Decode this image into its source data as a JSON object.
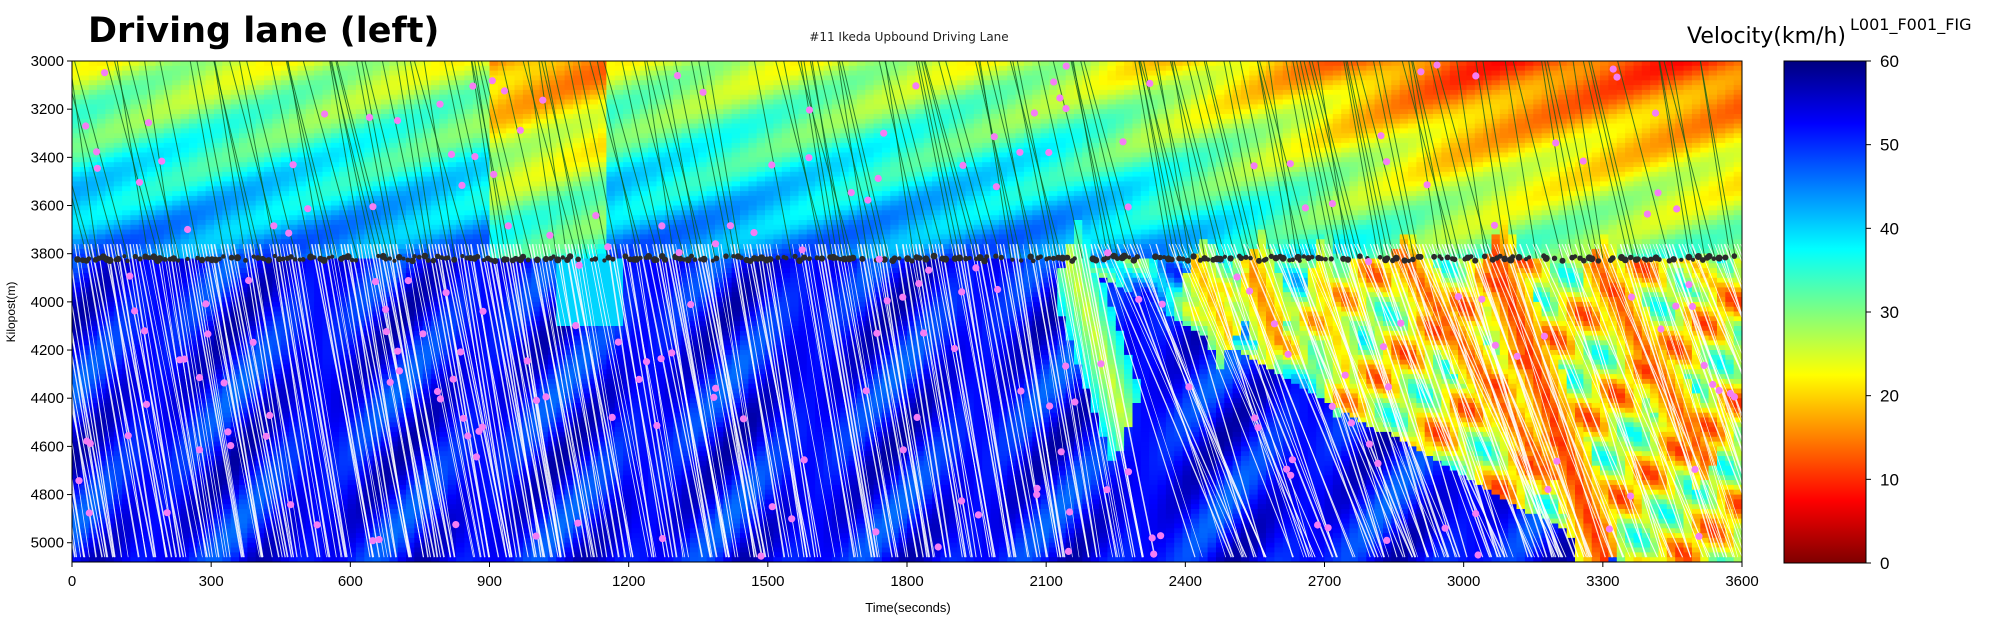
{
  "panel_label": "Driving lane (left)",
  "figure_id": "L001_F001_FIG",
  "colorbar_title": "Velocity(km/h)",
  "chart_data": {
    "type": "heatmap",
    "title": "#11 Ikeda Upbound Driving Lane",
    "xlabel": "Time(seconds)",
    "ylabel": "Kilopost(m)",
    "xlim": [
      0,
      3600
    ],
    "ylim": [
      3000,
      5080
    ],
    "y_inverted": true,
    "xticks": [
      0,
      300,
      600,
      900,
      1200,
      1500,
      1800,
      2100,
      2400,
      2700,
      3000,
      3300,
      3600
    ],
    "yticks": [
      3000,
      3200,
      3400,
      3600,
      3800,
      4000,
      4200,
      4400,
      4600,
      4800,
      5000
    ],
    "colorbar": {
      "label": "Velocity(km/h)",
      "range": [
        0,
        60
      ],
      "ticks": [
        0,
        10,
        20,
        30,
        40,
        50,
        60
      ],
      "colormap": "jet",
      "low_color": "#7f0000",
      "high_color": "#00007f"
    },
    "bottleneck_kilopost": 3820,
    "congestion_onset_time": 2140,
    "congestion_waves": [
      {
        "start_time": 2150,
        "start_kp": 3830,
        "end_time": 2270,
        "end_kp": 4500,
        "min_speed": 25
      },
      {
        "start_time": 2420,
        "start_kp": 3840,
        "end_time": 2500,
        "end_kp": 4150,
        "min_speed": 18
      },
      {
        "start_time": 2540,
        "start_kp": 3850,
        "end_time": 2600,
        "end_kp": 4150,
        "min_speed": 15
      },
      {
        "start_time": 2680,
        "start_kp": 3860,
        "end_time": 2750,
        "end_kp": 4300,
        "min_speed": 20
      },
      {
        "start_time": 2870,
        "start_kp": 3820,
        "end_time": 3180,
        "end_kp": 4700,
        "min_speed": 12
      },
      {
        "start_time": 3070,
        "start_kp": 3830,
        "end_time": 3300,
        "end_kp": 5050,
        "min_speed": 10
      },
      {
        "start_time": 3290,
        "start_kp": 3850,
        "end_time": 3520,
        "end_kp": 4650,
        "min_speed": 12
      },
      {
        "start_time": 3500,
        "start_kp": 3850,
        "end_time": 3600,
        "end_kp": 4050,
        "min_speed": 18
      }
    ],
    "series": [
      {
        "values_kind": "vehicle trajectories",
        "color": "#ffffff"
      },
      {
        "values_kind": "upstream trajectories",
        "color": "#0a5a1e"
      },
      {
        "values_kind": "detector points",
        "color": "#f47ef4"
      },
      {
        "values_kind": "bottleneck points",
        "color": "#2a2a2a"
      }
    ]
  }
}
